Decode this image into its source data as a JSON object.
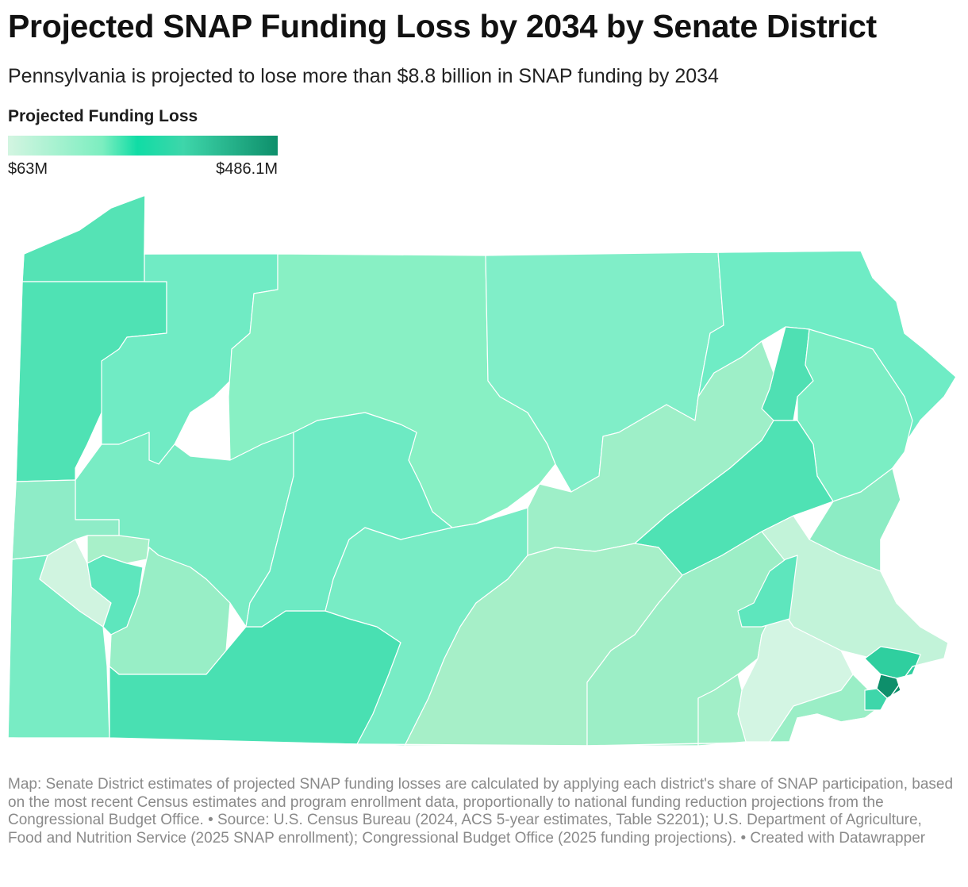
{
  "title": "Projected SNAP Funding Loss by 2034 by Senate District",
  "subtitle": "Pennsylvania is projected to lose more than $8.8 billion in SNAP funding by 2034",
  "legend": {
    "title": "Projected Funding Loss",
    "min_label": "$63M",
    "max_label": "$486.1M",
    "colors": [
      "#d3f5e1",
      "#7ceec0",
      "#10dca5",
      "#3ed6aa",
      "#0e8f6b"
    ]
  },
  "footer": {
    "map_note": "Map: Senate District estimates of projected SNAP funding losses are calculated by applying each district's share of SNAP participation, based on the most recent Census estimates and program enrollment data, proportionally to national funding reduction projections from the Congressional Budget Office.",
    "source": "• Source: U.S. Census Bureau (2024, ACS 5-year estimates, Table S2201); U.S. Department of Agriculture, Food and Nutrition Service (2025 SNAP enrollment); Congressional Budget Office (2025 funding projections).",
    "credit": "• Created with Datawrapper"
  },
  "fill_colors": {
    "lightest": "#d0f4e0",
    "light": "#a8f0c9",
    "pale": "#8ef0c2",
    "mid": "#76ecc5",
    "mid_deep": "#5ee6bd",
    "deep": "#49e0b2",
    "darker": "#2fcf9f",
    "darkest": "#0e8f6b"
  }
}
